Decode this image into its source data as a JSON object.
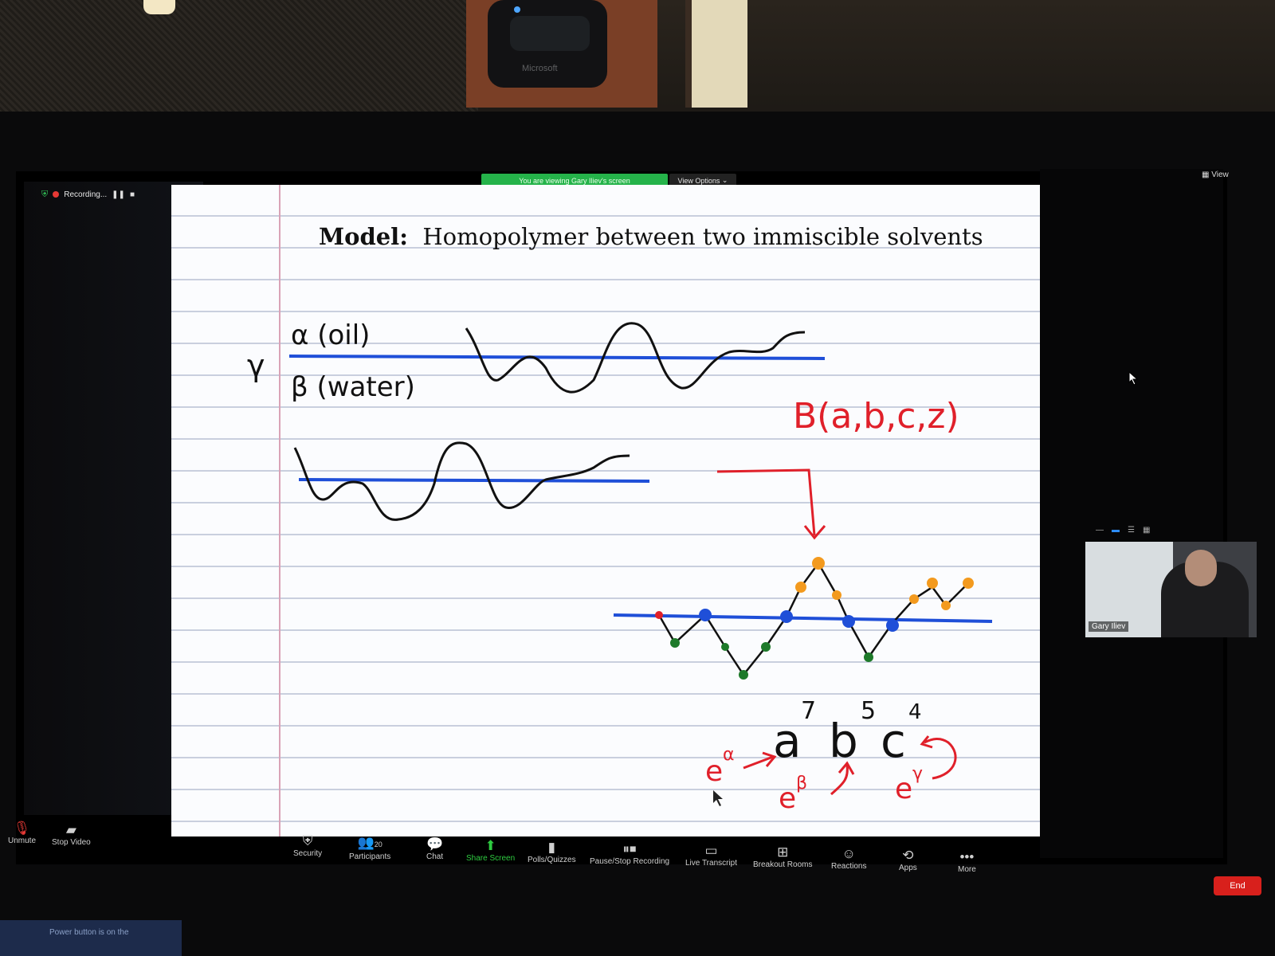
{
  "meeting": {
    "recording_label": "Recording...",
    "view_banner": "You are viewing Gary Iliev's screen",
    "view_options_label": "View Options",
    "view_label": "View"
  },
  "slide": {
    "title_bold": "Model:",
    "title_rest": "Homopolymer between two immiscible solvents",
    "handwriting": {
      "gamma": "γ",
      "alpha_label": "α (oil)",
      "beta_label": "β (water)",
      "function_label": "B(a,b,c,z)",
      "a_base": "a",
      "a_exp": "7",
      "b_base": "b",
      "b_exp": "5",
      "c_base": "c",
      "c_exp": "4",
      "e_alpha": "e",
      "e_alpha_sup": "α",
      "e_beta": "e",
      "e_beta_sup": "β",
      "e_gamma": "e",
      "e_gamma_sup": "γ"
    }
  },
  "participant_video": {
    "name": "Gary Iliev"
  },
  "toolbar": {
    "unmute": "Unmute",
    "stop_video": "Stop Video",
    "security": "Security",
    "participants": "Participants",
    "participants_count": "20",
    "chat": "Chat",
    "share_screen": "Share Screen",
    "polls": "Polls/Quizzes",
    "pause_recording": "Pause/Stop Recording",
    "live_transcript": "Live Transcript",
    "breakout_rooms": "Breakout Rooms",
    "reactions": "Reactions",
    "apps": "Apps",
    "more": "More",
    "end": "End"
  },
  "desktop": {
    "power_note": "Power button is on the"
  },
  "webcam": {
    "brand": "Microsoft"
  },
  "colors": {
    "zoom_green": "#25b34a",
    "end_red": "#d8201c",
    "ink_blue": "#1f4fd8",
    "ink_red": "#e0202a",
    "dot_orange": "#f39a1e",
    "dot_green": "#1e7a2a"
  }
}
